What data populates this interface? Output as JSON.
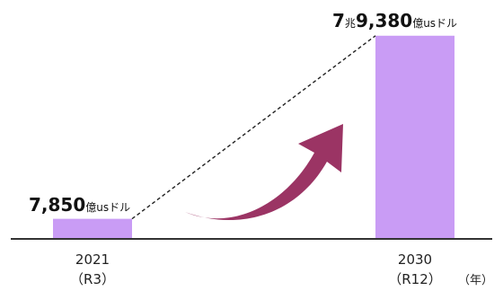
{
  "chart_data": {
    "type": "bar",
    "categories": [
      "2021",
      "2030"
    ],
    "category_sublabels": [
      "（R3）",
      "（R12）"
    ],
    "values": [
      0.785,
      7.938
    ],
    "value_labels": [
      [
        {
          "text": "7,850",
          "big": true
        },
        {
          "text": "億usドル",
          "big": false
        }
      ],
      [
        {
          "text": "7",
          "big": true
        },
        {
          "text": "兆",
          "big": false
        },
        {
          "text": "9,380",
          "big": true
        },
        {
          "text": "億usドル",
          "big": false
        }
      ]
    ],
    "xlabel_unit": "（年）",
    "ylim": [
      0,
      8
    ],
    "bar_color": "#c99cf5",
    "arrow_color": "#9b3464",
    "dashed_line_color": "#222222",
    "axis_color": "#333333",
    "grid": false
  }
}
